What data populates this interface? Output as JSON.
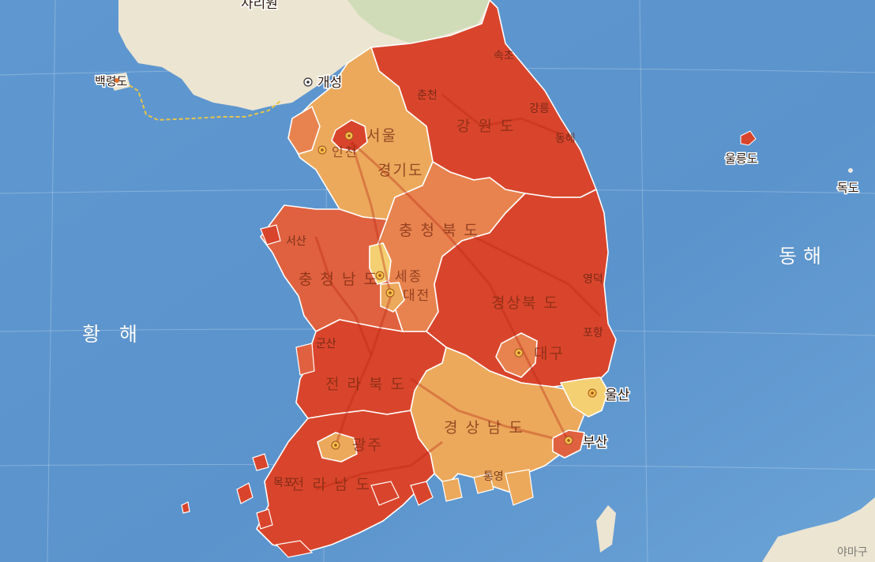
{
  "colors": {
    "sea": "#5b95cf",
    "level_highest": "#d9452c",
    "level_high": "#e0613f",
    "level_mid": "#e8834f",
    "level_low": "#eca95c",
    "level_lowest": "#f4d072"
  },
  "seas": {
    "west": "황 해",
    "east": "동해"
  },
  "top_label": "사리원",
  "islands": {
    "baengnyeong": "백령도",
    "ulleung": "울릉도",
    "dok": "독도"
  },
  "regions": [
    {
      "id": "gangwon",
      "name": "강 원 도",
      "level": "highest"
    },
    {
      "id": "gyeonggi",
      "name": "경기도",
      "level": "low"
    },
    {
      "id": "chungbuk",
      "name": "충 청 북 도",
      "level": "mid"
    },
    {
      "id": "chungnam",
      "name": "충 청 남 도",
      "level": "high"
    },
    {
      "id": "gyeongbuk",
      "name": "경상북 도",
      "level": "highest"
    },
    {
      "id": "jeonbuk",
      "name": "전 라 북 도",
      "level": "highest"
    },
    {
      "id": "gyeongnam",
      "name": "경 상 남 도",
      "level": "low"
    },
    {
      "id": "jeonnam",
      "name": "전 라 남 도",
      "level": "highest"
    }
  ],
  "cities": {
    "gaeseong": "개성",
    "seoul": "서울",
    "incheon": "인천",
    "sejong": "세종",
    "daejeon": "대전",
    "daegu": "대구",
    "ulsan": "울산",
    "busan": "부산",
    "gwangju": "광주"
  },
  "minor_places": {
    "sokcho": "속초",
    "chuncheon": "춘천",
    "gangneung": "강릉",
    "donghae": "동해",
    "seosan": "서산",
    "yeongdeok": "영덕",
    "pohang": "포항",
    "gunsan": "군산",
    "tongyeong": "통영",
    "mokpo": "목포",
    "yamaguchi": "야마구"
  }
}
